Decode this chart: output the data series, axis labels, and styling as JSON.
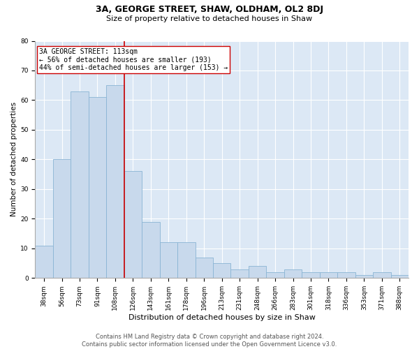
{
  "title1": "3A, GEORGE STREET, SHAW, OLDHAM, OL2 8DJ",
  "title2": "Size of property relative to detached houses in Shaw",
  "xlabel": "Distribution of detached houses by size in Shaw",
  "ylabel": "Number of detached properties",
  "categories": [
    "38sqm",
    "56sqm",
    "73sqm",
    "91sqm",
    "108sqm",
    "126sqm",
    "143sqm",
    "161sqm",
    "178sqm",
    "196sqm",
    "213sqm",
    "231sqm",
    "248sqm",
    "266sqm",
    "283sqm",
    "301sqm",
    "318sqm",
    "336sqm",
    "353sqm",
    "371sqm",
    "388sqm"
  ],
  "values": [
    11,
    40,
    63,
    61,
    65,
    36,
    19,
    12,
    12,
    7,
    5,
    3,
    4,
    2,
    3,
    2,
    2,
    2,
    1,
    2,
    1
  ],
  "bar_color": "#c8d9ec",
  "bar_edge_color": "#8ab4d4",
  "vline_x_index": 4.5,
  "vline_color": "#cc0000",
  "annotation_text": "3A GEORGE STREET: 113sqm\n← 56% of detached houses are smaller (193)\n44% of semi-detached houses are larger (153) →",
  "annotation_box_color": "#ffffff",
  "annotation_edge_color": "#cc0000",
  "ylim": [
    0,
    80
  ],
  "yticks": [
    0,
    10,
    20,
    30,
    40,
    50,
    60,
    70,
    80
  ],
  "background_color": "#dce8f5",
  "footer_text": "Contains HM Land Registry data © Crown copyright and database right 2024.\nContains public sector information licensed under the Open Government Licence v3.0.",
  "title1_fontsize": 9,
  "title2_fontsize": 8,
  "xlabel_fontsize": 8,
  "ylabel_fontsize": 7.5,
  "annotation_fontsize": 7,
  "tick_fontsize": 6.5,
  "footer_fontsize": 6
}
